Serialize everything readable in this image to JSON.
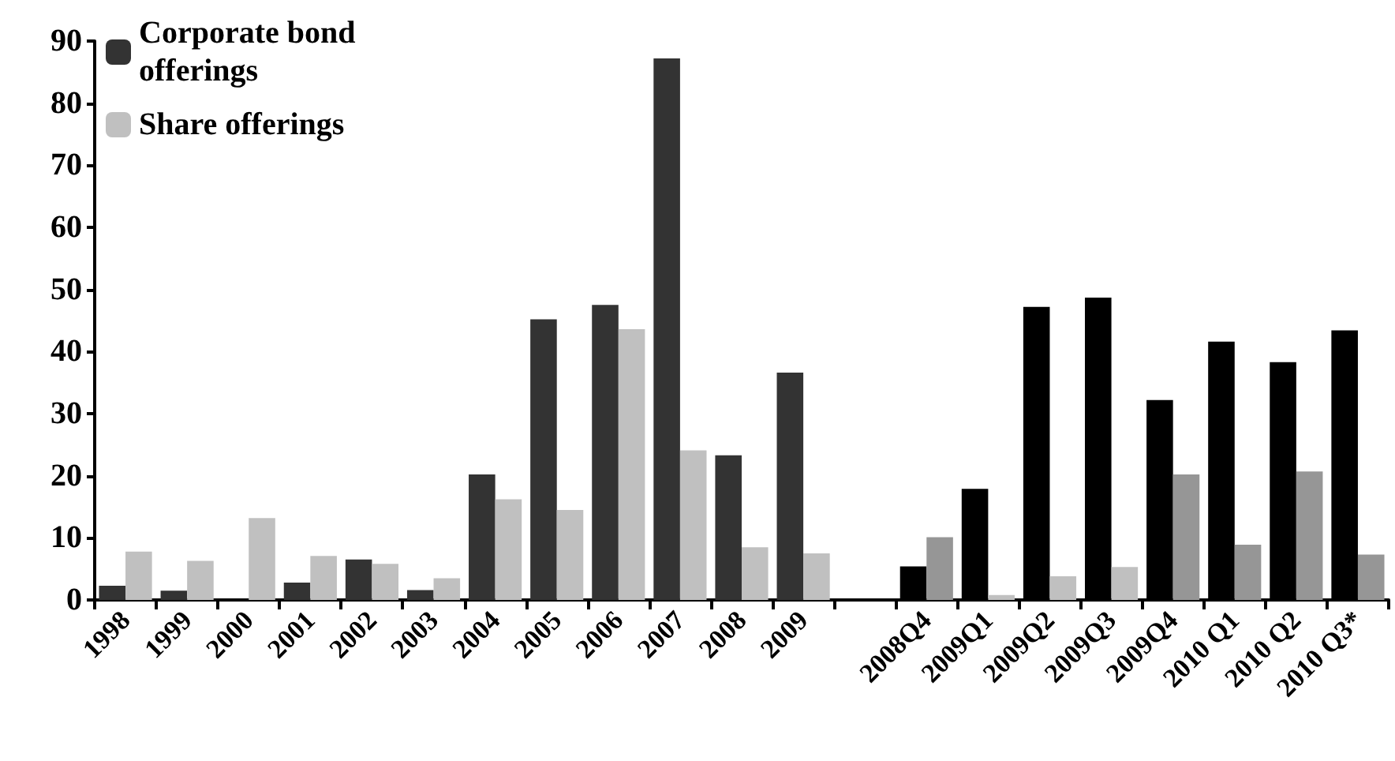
{
  "chart_data": {
    "type": "bar",
    "categories": [
      "1998",
      "1999",
      "2000",
      "2001",
      "2002",
      "2003",
      "2004",
      "2005",
      "2006",
      "2007",
      "2008",
      "2009",
      null,
      "2008Q4",
      "2009Q1",
      "2009Q2",
      "2009Q3",
      "2009Q4",
      "2010 Q1",
      "2010 Q2",
      "2010 Q3*"
    ],
    "series": [
      {
        "name": "Corporate bond offerings",
        "color": "#333333",
        "colors": [
          "#333333",
          "#333333",
          "#333333",
          "#333333",
          "#333333",
          "#333333",
          "#333333",
          "#333333",
          "#333333",
          "#333333",
          "#333333",
          "#333333",
          "#333333",
          "#000000",
          "#000000",
          "#000000",
          "#000000",
          "#000000",
          "#000000",
          "#000000",
          "#000000"
        ],
        "values": [
          2.3,
          1.5,
          0,
          2.8,
          6.5,
          1.6,
          20.2,
          45.2,
          47.5,
          87.2,
          23.3,
          36.6,
          null,
          5.4,
          17.9,
          47.2,
          48.7,
          32.2,
          41.6,
          38.3,
          43.4
        ]
      },
      {
        "name": "Share offerings",
        "color": "#c0c0c0",
        "colors": [
          "#c0c0c0",
          "#c0c0c0",
          "#c0c0c0",
          "#c0c0c0",
          "#c0c0c0",
          "#c0c0c0",
          "#c0c0c0",
          "#c0c0c0",
          "#c0c0c0",
          "#c0c0c0",
          "#c0c0c0",
          "#c0c0c0",
          "#c0c0c0",
          "#969696",
          "#c0c0c0",
          "#c0c0c0",
          "#c0c0c0",
          "#969696",
          "#969696",
          "#969696",
          "#969696"
        ],
        "values": [
          7.8,
          6.3,
          13.2,
          7.1,
          5.8,
          3.5,
          16.2,
          14.5,
          43.6,
          24.1,
          8.5,
          7.5,
          null,
          10.1,
          0.8,
          3.8,
          5.3,
          20.2,
          8.9,
          20.7,
          7.3
        ]
      }
    ],
    "ylim": [
      0,
      90
    ],
    "yticks": [
      0,
      10,
      20,
      30,
      40,
      50,
      60,
      70,
      80,
      90
    ],
    "grid": false,
    "legend": "top left"
  }
}
